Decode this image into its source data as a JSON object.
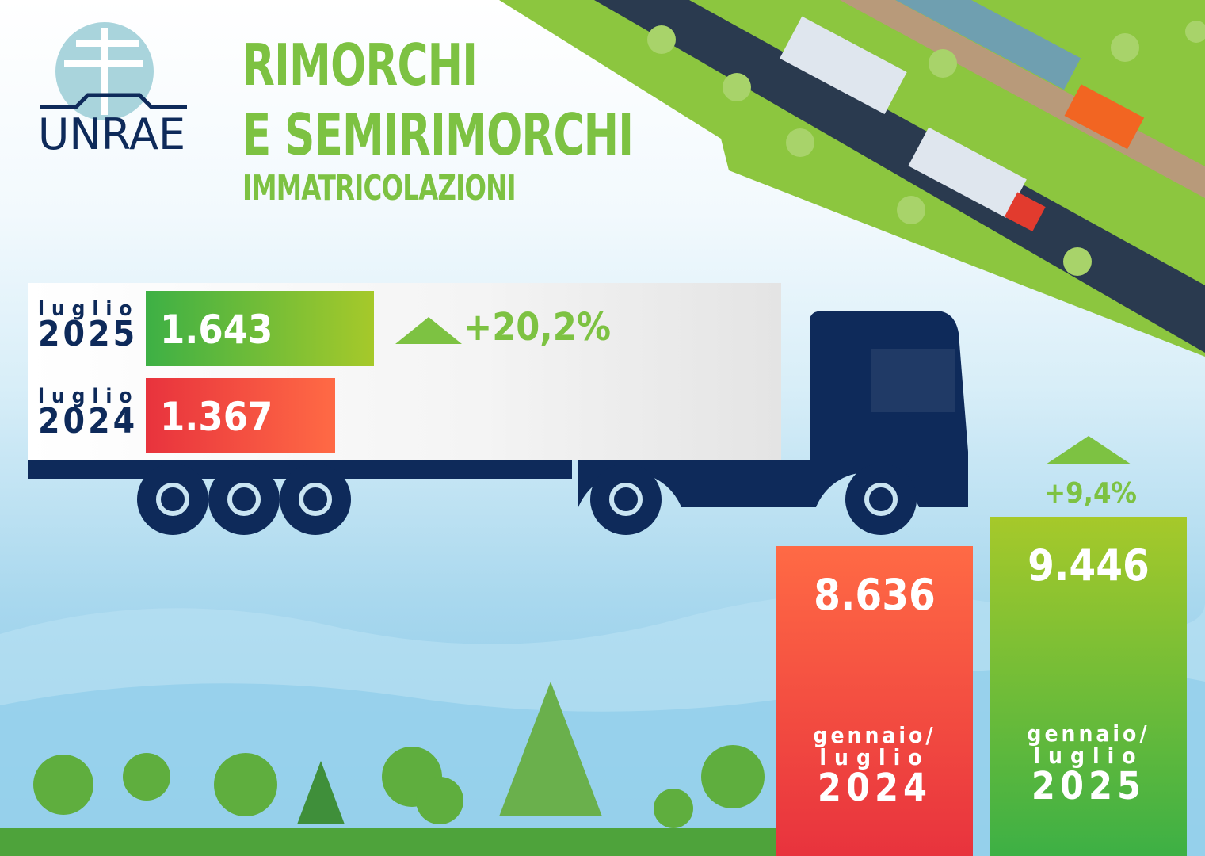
{
  "logo": {
    "text": "UNRAE"
  },
  "header": {
    "title_line1": "RIMORCHI",
    "title_line2": "E SEMIRIMORCHI",
    "subtitle": "IMMATRICOLAZIONI"
  },
  "colors": {
    "green": "#7dc242",
    "red": "#f0483e",
    "navy": "#0e2a5a"
  },
  "chart_data": [
    {
      "type": "bar",
      "orientation": "horizontal",
      "categories": [
        {
          "month": "luglio",
          "year": "2025"
        },
        {
          "month": "luglio",
          "year": "2024"
        }
      ],
      "values": [
        1643,
        1367
      ],
      "value_labels": [
        "1.643",
        "1.367"
      ],
      "change": "+20,2%"
    },
    {
      "type": "bar",
      "orientation": "vertical",
      "categories": [
        {
          "period": "gennaio/",
          "month": "luglio",
          "year": "2024"
        },
        {
          "period": "gennaio/",
          "month": "luglio",
          "year": "2025"
        }
      ],
      "values": [
        8636,
        9446
      ],
      "value_labels": [
        "8.636",
        "9.446"
      ],
      "change": "+9,4%"
    }
  ]
}
